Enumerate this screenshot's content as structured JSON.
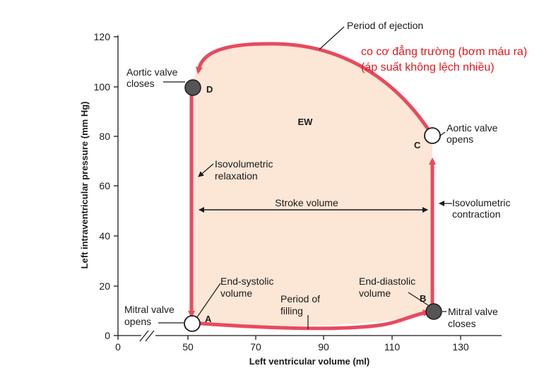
{
  "axes": {
    "x_title": "Left ventricular volume (ml)",
    "y_title": "Left intraventricular pressure (mm Hg)",
    "x_ticks": [
      "0",
      "50",
      "70",
      "90",
      "110",
      "130"
    ],
    "y_ticks": [
      "0",
      "20",
      "40",
      "60",
      "80",
      "100",
      "120"
    ]
  },
  "labels": {
    "period_ejection": "Period of ejection",
    "aortic_closes_1": "Aortic valve",
    "aortic_closes_2": "closes",
    "aortic_opens_1": "Aortic valve",
    "aortic_opens_2": "opens",
    "iso_relax_1": "Isovolumetric",
    "iso_relax_2": "relaxation",
    "iso_contract_1": "Isovolumetric",
    "iso_contract_2": "contraction",
    "stroke_volume": "Stroke volume",
    "ew": "EW",
    "end_systolic_1": "End-systolic",
    "end_systolic_2": "volume",
    "end_diastolic_1": "End-diastolic",
    "end_diastolic_2": "volume",
    "period_filling_1": "Period of",
    "period_filling_2": "filling",
    "mitral_opens_1": "Mitral valve",
    "mitral_opens_2": "opens",
    "mitral_closes_1": "Mitral valve",
    "mitral_closes_2": "closes"
  },
  "points": {
    "a": "A",
    "b": "B",
    "c": "C",
    "d": "D"
  },
  "annotation": {
    "line1": "co cơ đẳng trường (bơm máu ra)",
    "line2": "(áp suất không lệch nhiều)",
    "color": "#e0191e"
  },
  "colors": {
    "loop": "#e84a5f",
    "fill": "#fce6d6",
    "valve_closed": "#555555"
  }
}
